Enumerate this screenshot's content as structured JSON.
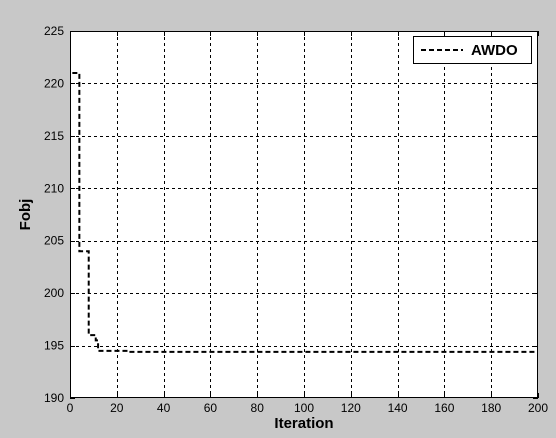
{
  "chart_data": {
    "type": "line",
    "xlabel": "Iteration",
    "ylabel": "Fobj",
    "xlim": [
      0,
      200
    ],
    "ylim": [
      190,
      225
    ],
    "xticks": [
      0,
      20,
      40,
      60,
      80,
      100,
      120,
      140,
      160,
      180,
      200
    ],
    "yticks": [
      190,
      195,
      200,
      205,
      210,
      215,
      220,
      225
    ],
    "grid": true,
    "legend_position": "top-right",
    "background_color": "#c8c8c8",
    "plot_background_color": "#ffffff",
    "series": [
      {
        "name": "AWDO",
        "color": "#000000",
        "line_style": "dashed",
        "step": true,
        "x": [
          1,
          3,
          4,
          7,
          8,
          11,
          12,
          18,
          25,
          200
        ],
        "y": [
          221,
          221,
          204,
          204,
          196,
          195.5,
          194.5,
          194.5,
          194.4,
          194.4
        ]
      }
    ]
  }
}
